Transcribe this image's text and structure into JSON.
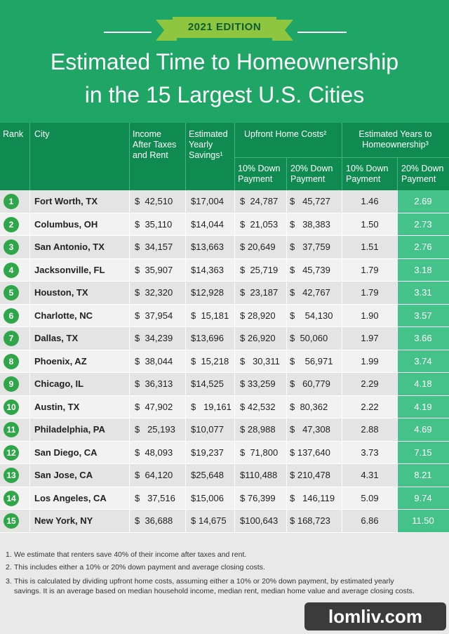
{
  "header": {
    "edition": "2021 EDITION",
    "title_line1": "Estimated Time to Homeownership",
    "title_line2": "in the 15 Largest U.S. Cities"
  },
  "columns": {
    "rank": "Rank",
    "city": "City",
    "income": [
      "Income",
      "After Taxes",
      "and Rent"
    ],
    "savings": [
      "Estimated",
      "Yearly",
      "Savings¹"
    ],
    "upfront": "Upfront Home Costs²",
    "years": [
      "Estimated Years to",
      "Homeownership³"
    ],
    "down10": [
      "10% Down",
      "Payment"
    ],
    "down20": [
      "20% Down",
      "Payment"
    ]
  },
  "rows": [
    {
      "rank": "1",
      "city": "Fort Worth, TX",
      "income": "$  42,510",
      "savings": "$17,004",
      "d10": "$  24,787",
      "d20": "$   45,727",
      "y10": "1.46",
      "y20": "2.69"
    },
    {
      "rank": "2",
      "city": "Columbus, OH",
      "income": "$  35,110",
      "savings": "$14,044",
      "d10": "$  21,053",
      "d20": "$   38,383",
      "y10": "1.50",
      "y20": "2.73"
    },
    {
      "rank": "3",
      "city": "San Antonio, TX",
      "income": "$  34,157",
      "savings": "$13,663",
      "d10": "$ 20,649",
      "d20": "$   37,759",
      "y10": "1.51",
      "y20": "2.76"
    },
    {
      "rank": "4",
      "city": "Jacksonville, FL",
      "income": "$  35,907",
      "savings": "$14,363",
      "d10": "$  25,719",
      "d20": "$   45,739",
      "y10": "1.79",
      "y20": "3.18"
    },
    {
      "rank": "5",
      "city": "Houston, TX",
      "income": "$  32,320",
      "savings": "$12,928",
      "d10": "$  23,187",
      "d20": "$   42,767",
      "y10": "1.79",
      "y20": "3.31"
    },
    {
      "rank": "6",
      "city": "Charlotte, NC",
      "income": "$  37,954",
      "savings": "$  15,181",
      "d10": "$ 28,920",
      "d20": "$    54,130",
      "y10": "1.90",
      "y20": "3.57"
    },
    {
      "rank": "7",
      "city": "Dallas, TX",
      "income": "$  34,239",
      "savings": "$13,696",
      "d10": "$ 26,920",
      "d20": "$  50,060",
      "y10": "1.97",
      "y20": "3.66"
    },
    {
      "rank": "8",
      "city": "Phoenix, AZ",
      "income": "$  38,044",
      "savings": "$  15,218",
      "d10": "$   30,311",
      "d20": "$    56,971",
      "y10": "1.99",
      "y20": "3.74"
    },
    {
      "rank": "9",
      "city": "Chicago, IL",
      "income": "$  36,313",
      "savings": "$14,525",
      "d10": "$ 33,259",
      "d20": "$   60,779",
      "y10": "2.29",
      "y20": "4.18"
    },
    {
      "rank": "10",
      "city": "Austin, TX",
      "income": "$  47,902",
      "savings": "$   19,161",
      "d10": "$ 42,532",
      "d20": "$  80,362",
      "y10": "2.22",
      "y20": "4.19"
    },
    {
      "rank": "11",
      "city": "Philadelphia, PA",
      "income": "$   25,193",
      "savings": "$10,077",
      "d10": "$ 28,988",
      "d20": "$   47,308",
      "y10": "2.88",
      "y20": "4.69"
    },
    {
      "rank": "12",
      "city": "San Diego, CA",
      "income": "$  48,093",
      "savings": "$19,237",
      "d10": "$  71,800",
      "d20": "$ 137,640",
      "y10": "3.73",
      "y20": "7.15"
    },
    {
      "rank": "13",
      "city": "San Jose, CA",
      "income": "$  64,120",
      "savings": "$25,648",
      "d10": "$110,488",
      "d20": "$ 210,478",
      "y10": "4.31",
      "y20": "8.21"
    },
    {
      "rank": "14",
      "city": "Los Angeles, CA",
      "income": "$   37,516",
      "savings": "$15,006",
      "d10": "$ 76,399",
      "d20": "$   146,119",
      "y10": "5.09",
      "y20": "9.74"
    },
    {
      "rank": "15",
      "city": "New York, NY",
      "income": "$  36,688",
      "savings": "$ 14,675",
      "d10": "$100,643",
      "d20": "$ 168,723",
      "y10": "6.86",
      "y20": "11.50"
    }
  ],
  "footnotes": [
    {
      "num": "1.",
      "text": "We estimate that renters save 40% of their income after taxes and rent."
    },
    {
      "num": "2.",
      "text": "This includes either a 10% or 20% down payment and average closing costs."
    },
    {
      "num": "3.",
      "text": "This is calculated by dividing upfront home costs, assuming either a 10% or 20% down payment, by estimated yearly savings. It is an average based on median household income, median rent, median home value and average closing costs."
    }
  ],
  "watermark": "lomliv.com",
  "colors": {
    "header_green": "#1fa565",
    "table_head": "#0f8a51",
    "ribbon": "#8ec63f",
    "highlight": "#45c28a",
    "badge": "#2fa64a"
  }
}
